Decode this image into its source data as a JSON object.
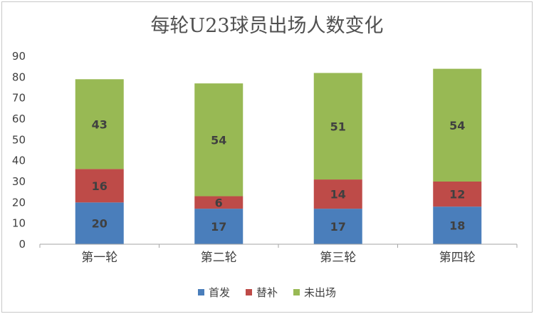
{
  "chart_data": {
    "type": "bar",
    "stacked": true,
    "title": "每轮U23球员出场人数变化",
    "categories": [
      "第一轮",
      "第二轮",
      "第三轮",
      "第四轮"
    ],
    "series": [
      {
        "name": "首发",
        "color": "#4a7ebb",
        "values": [
          20,
          17,
          17,
          18
        ]
      },
      {
        "name": "替补",
        "color": "#be4b48",
        "values": [
          16,
          6,
          14,
          12
        ]
      },
      {
        "name": "未出场",
        "color": "#98b954",
        "values": [
          43,
          54,
          51,
          54
        ]
      }
    ],
    "ylim": [
      0,
      90
    ],
    "yticks": [
      0,
      10,
      20,
      30,
      40,
      50,
      60,
      70,
      80,
      90
    ],
    "grid": false,
    "legend_position": "bottom"
  }
}
